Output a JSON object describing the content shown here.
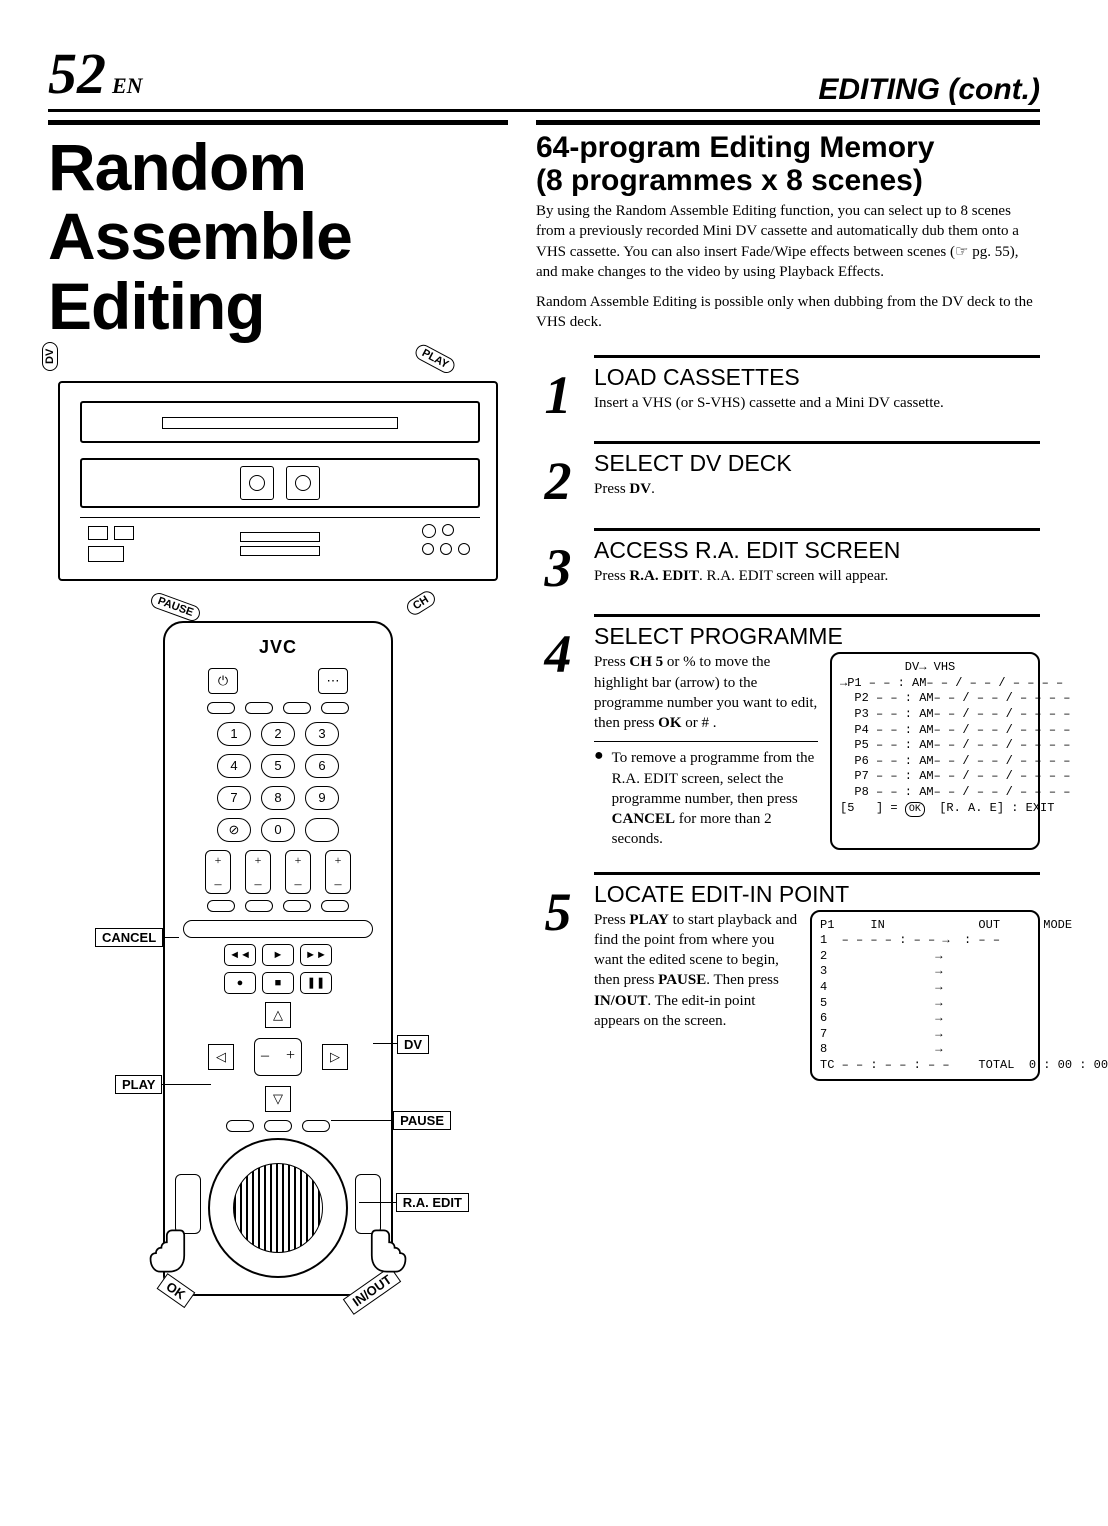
{
  "header": {
    "page_number": "52",
    "lang": "EN",
    "section": "EDITING (cont.)"
  },
  "main_title": "Random Assemble Editing",
  "deck_callouts": {
    "dv": "DV",
    "play": "PLAY",
    "ch": "CH",
    "pause": "PAUSE"
  },
  "remote": {
    "brand": "JVC",
    "digits": [
      "1",
      "2",
      "3",
      "4",
      "5",
      "6",
      "7",
      "8",
      "9",
      "0"
    ],
    "labels": {
      "cancel": "CANCEL",
      "dv": "DV",
      "play": "PLAY",
      "pause": "PAUSE",
      "raedit": "R.A. EDIT",
      "ok": "OK",
      "inout": "IN/OUT"
    }
  },
  "right": {
    "subheading_l1": "64-program Editing Memory",
    "subheading_l2": "(8 programmes x 8 scenes)",
    "intro": "By using the Random Assemble Editing function, you can select up to 8 scenes from a previously recorded Mini DV cassette and automatically dub them onto a VHS cassette.  You can also insert Fade/Wipe effects between scenes (☞ pg. 55), and make changes to the video by using Playback Effects.",
    "intro2": "Random Assemble Editing is possible only when dubbing from the DV deck to the VHS deck.",
    "steps": [
      {
        "num": "1",
        "title": "LOAD CASSETTES",
        "desc": "Insert a VHS (or S-VHS) cassette and a Mini DV cassette."
      },
      {
        "num": "2",
        "title": "SELECT DV DECK",
        "desc_pre": "Press ",
        "desc_b": "DV",
        "desc_post": "."
      },
      {
        "num": "3",
        "title": "ACCESS R.A. EDIT SCREEN",
        "desc_pre": "Press ",
        "desc_b": "R.A. EDIT",
        "desc_post": ". R.A. EDIT screen will appear."
      },
      {
        "num": "4",
        "title": "SELECT PROGRAMME",
        "desc_a_pre": "Press ",
        "desc_a_b1": "CH 5",
        "desc_a_mid": "   or %   to move the highlight bar (arrow) to the programme number you want to edit, then press ",
        "desc_a_b2": "OK",
        "desc_a_post": " or # .",
        "bullet_pre": "To remove a programme from the R.A. EDIT screen, select the programme number, then press ",
        "bullet_b": "CANCEL",
        "bullet_post": " for more than 2 seconds."
      },
      {
        "num": "5",
        "title": "LOCATE EDIT-IN POINT",
        "desc_pre": "Press ",
        "desc_b1": "PLAY",
        "desc_mid1": " to start playback and find the point from where you want the edited scene to begin, then press ",
        "desc_b2": "PAUSE",
        "desc_mid2": ". Then press ",
        "desc_b3": "IN/OUT",
        "desc_post": ". The edit-in point appears on the screen."
      }
    ],
    "screen1": {
      "title": "DV→ VHS",
      "rows": [
        "→P1",
        "  P2",
        "  P3",
        "  P4",
        "  P5",
        "  P6",
        "  P7",
        "  P8"
      ],
      "row_tail": " – – : AM– – / – – / – – – –",
      "footer_a": "[5   ] = ",
      "footer_ok": "OK",
      "footer_b": "  [R. A. E] : EXIT"
    },
    "screen2": {
      "header": "P1     IN             OUT      MODE",
      "row1": "1  – – – – : – – →  : – –",
      "rows_blank": [
        "2",
        "3",
        "4",
        "5",
        "6",
        "7",
        "8"
      ],
      "arrow": "               →",
      "footer": "TC – – : – – : – –    TOTAL  0 : 00 : 00"
    }
  }
}
